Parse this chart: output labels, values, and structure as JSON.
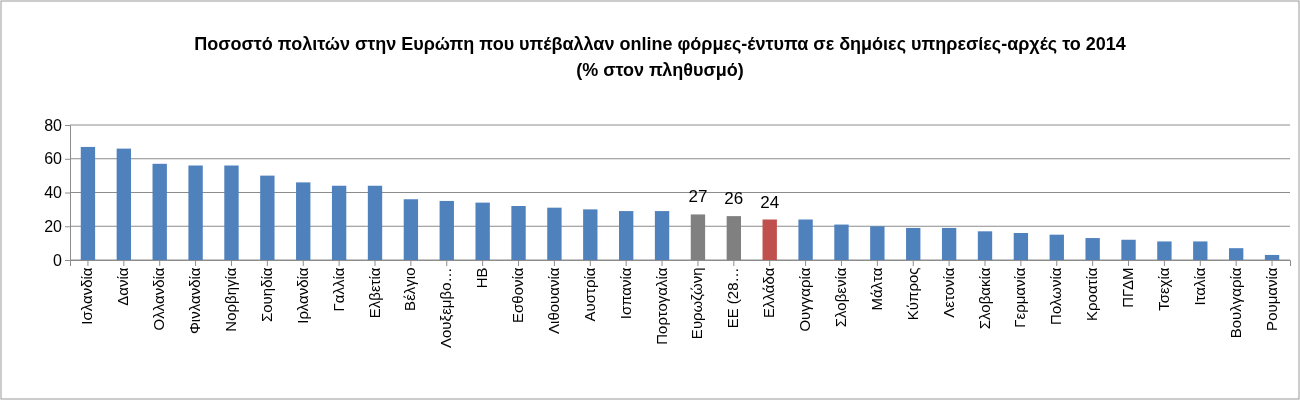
{
  "chart_data": {
    "type": "bar",
    "title": "Ποσοστό πολιτών στην Ευρώπη που υπέβαλλαν online φόρμες-έντυπα σε δημόιες υπηρεσίες-αρχές το 2014 (% στον πληθυσμό)",
    "categories": [
      "Ισλανδία",
      "Δανία",
      "Ολλανδία",
      "Φινλανδία",
      "Νορβηγία",
      "Σουηδία",
      "Ιρλανδία",
      "Γαλλία",
      "Ελβετία",
      "Βέλγιο",
      "Λουξεμβο…",
      "ΗΒ",
      "Εσθονία",
      "Λιθουανία",
      "Αυστρία",
      "Ισπανία",
      "Πορτογαλία",
      "Ευρωζώνη",
      "ΕΕ (28…",
      "Ελλάδα",
      "Ουγγαρία",
      "Σλοβενία",
      "Μάλτα",
      "Κύπρος",
      "Λετονία",
      "Σλοβακία",
      "Γερμανία",
      "Πολωνία",
      "Κροατία",
      "ΠΓΔΜ",
      "Τσεχία",
      "Ιταλία",
      "Βουλγαρία",
      "Ρουμανία"
    ],
    "values": [
      67,
      66,
      57,
      56,
      56,
      50,
      46,
      44,
      44,
      36,
      35,
      34,
      32,
      31,
      30,
      29,
      29,
      27,
      26,
      24,
      24,
      21,
      20,
      19,
      19,
      17,
      16,
      15,
      13,
      12,
      11,
      11,
      7,
      3
    ],
    "colors": [
      "#4f81bd",
      "#4f81bd",
      "#4f81bd",
      "#4f81bd",
      "#4f81bd",
      "#4f81bd",
      "#4f81bd",
      "#4f81bd",
      "#4f81bd",
      "#4f81bd",
      "#4f81bd",
      "#4f81bd",
      "#4f81bd",
      "#4f81bd",
      "#4f81bd",
      "#4f81bd",
      "#4f81bd",
      "#808080",
      "#808080",
      "#c0504d",
      "#4f81bd",
      "#4f81bd",
      "#4f81bd",
      "#4f81bd",
      "#4f81bd",
      "#4f81bd",
      "#4f81bd",
      "#4f81bd",
      "#4f81bd",
      "#4f81bd",
      "#4f81bd",
      "#4f81bd",
      "#4f81bd",
      "#4f81bd"
    ],
    "value_labels": [
      null,
      null,
      null,
      null,
      null,
      null,
      null,
      null,
      null,
      null,
      null,
      null,
      null,
      null,
      null,
      null,
      null,
      "27",
      "26",
      "24",
      null,
      null,
      null,
      null,
      null,
      null,
      null,
      null,
      null,
      null,
      null,
      null,
      null,
      null
    ],
    "ylim": [
      0,
      80
    ],
    "yticks": [
      0,
      20,
      40,
      60,
      80
    ],
    "grid": "y"
  }
}
